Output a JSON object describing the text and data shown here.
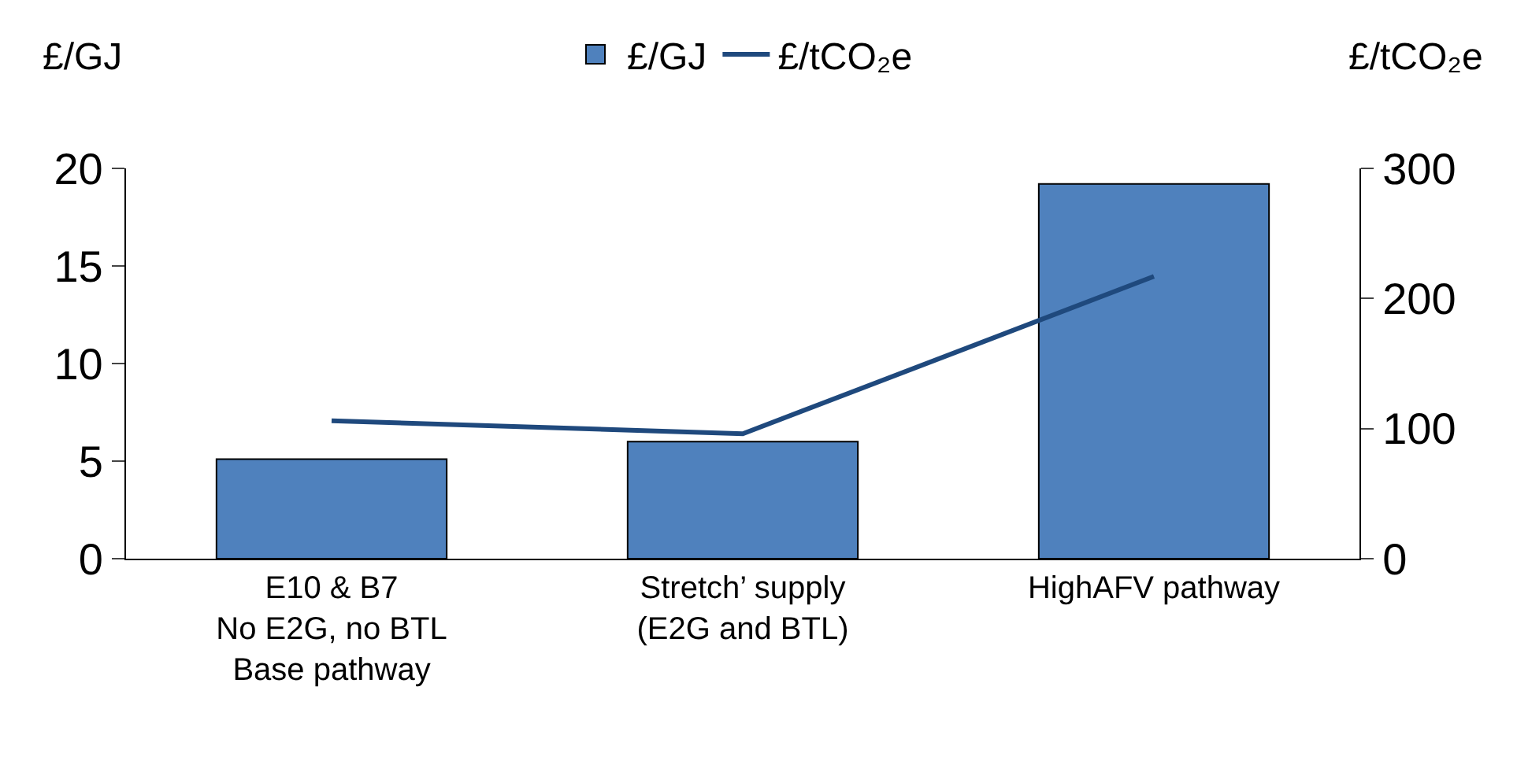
{
  "chart_data": {
    "type": "bar",
    "ylabel": "£/GJ",
    "y2label": "£/tCO₂e",
    "categories": [
      "E10 & B7\nNo E2G, no BTL\nBase pathway",
      "Stretch’ supply\n(E2G and BTL)",
      "HighAFV pathway"
    ],
    "series": [
      {
        "name": "£/GJ",
        "color": "#4f81bd",
        "values": [
          5.1,
          6,
          19.2
        ]
      },
      {
        "name": "£/tCO₂e",
        "type": "line",
        "axis": "y2",
        "color": "#1f497d",
        "values": [
          106,
          96,
          217
        ]
      }
    ],
    "ylim": [
      0,
      20
    ],
    "yticks": [
      0,
      5,
      10,
      15,
      20
    ],
    "y2lim": [
      0,
      300
    ],
    "y2ticks": [
      0,
      100,
      200,
      300
    ],
    "legend": "top",
    "marker": "none",
    "line_style": "solid"
  }
}
